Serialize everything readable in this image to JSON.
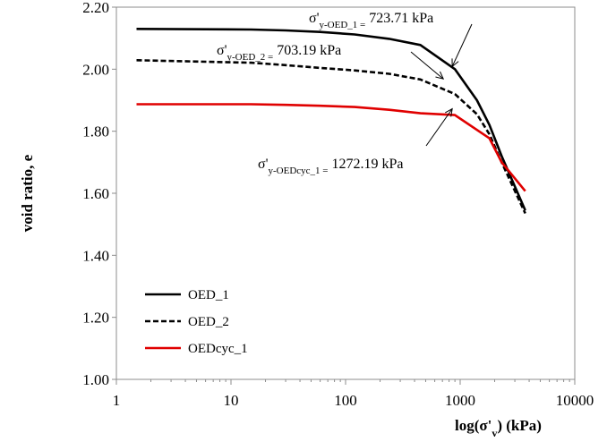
{
  "chart_data": {
    "type": "line",
    "x_scale": "log",
    "xlim": [
      1,
      10000
    ],
    "ylim": [
      1.0,
      2.2
    ],
    "xlabel": {
      "main": "log(σ'",
      "sub": "v",
      "tail": ")   (kPa)"
    },
    "ylabel": "void ratio, e",
    "x_ticks": [
      1,
      10,
      100,
      1000,
      10000
    ],
    "x_tick_labels": [
      "1",
      "10",
      "100",
      "1000",
      "10000"
    ],
    "y_ticks": [
      1.0,
      1.2,
      1.4,
      1.6,
      1.8,
      2.0,
      2.2
    ],
    "y_tick_labels": [
      "1.00",
      "1.20",
      "1.40",
      "1.60",
      "1.80",
      "2.00",
      "2.20"
    ],
    "grid": false,
    "legend_position": "bottom-left",
    "series": [
      {
        "name": "OED_1",
        "color": "#000000",
        "dash": "solid",
        "x": [
          1.5,
          15,
          30,
          60,
          120,
          240,
          450,
          900,
          1400,
          1800,
          2300,
          3700
        ],
        "y": [
          2.13,
          2.128,
          2.125,
          2.12,
          2.112,
          2.098,
          2.078,
          2.0,
          1.9,
          1.82,
          1.72,
          1.545
        ]
      },
      {
        "name": "OED_2",
        "color": "#000000",
        "dash": "dashed",
        "x": [
          1.5,
          15,
          30,
          60,
          120,
          240,
          450,
          900,
          1400,
          1800,
          2300,
          3700
        ],
        "y": [
          2.029,
          2.021,
          2.013,
          2.004,
          1.996,
          1.985,
          1.967,
          1.92,
          1.855,
          1.79,
          1.7,
          1.535
        ]
      },
      {
        "name": "OEDcyc_1",
        "color": "#e00000",
        "dash": "solid",
        "x": [
          1.5,
          15,
          30,
          60,
          120,
          240,
          450,
          900,
          1800,
          2300,
          3700
        ],
        "y": [
          1.887,
          1.887,
          1.885,
          1.882,
          1.878,
          1.869,
          1.858,
          1.852,
          1.777,
          1.7,
          1.607
        ]
      }
    ],
    "annotations": [
      {
        "prefix": "σ'",
        "sub": "y-OED_1 =",
        "value": "723.71 kPa",
        "arrow_to": [
          900,
          2.0
        ]
      },
      {
        "prefix": "σ'",
        "sub": "y-OED_2 =",
        "value": "703.19 kPa",
        "arrow_to": [
          780,
          1.96
        ]
      },
      {
        "prefix": "σ'",
        "sub": "y-OEDcyc_1 =",
        "value": "1272.19 kPa",
        "arrow_to": [
          900,
          1.855
        ]
      }
    ]
  }
}
